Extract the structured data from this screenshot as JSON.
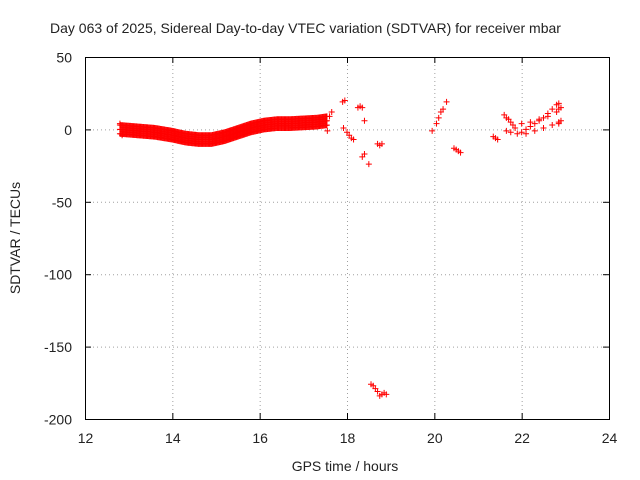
{
  "chart_data": {
    "type": "scatter",
    "title": "Day 063 of 2025, Sidereal Day-to-day VTEC variation (SDTVAR) for receiver mbar",
    "xlabel": "GPS time / hours",
    "ylabel": "SDTVAR / TECUs",
    "xlim": [
      12,
      24
    ],
    "ylim": [
      -200,
      50
    ],
    "xticks": [
      12,
      14,
      16,
      18,
      20,
      22,
      24
    ],
    "yticks": [
      -200,
      -150,
      -100,
      -50,
      0,
      50
    ],
    "grid": true,
    "marker": "+",
    "marker_color": "#ff0000",
    "series": [
      {
        "name": "SDTVAR",
        "bands": [
          {
            "x": [
              12.8,
              13.2,
              13.6,
              14.0,
              14.3,
              14.6,
              14.9,
              15.2,
              15.5,
              15.8,
              16.1,
              16.4,
              16.7,
              17.0,
              17.3,
              17.55
            ],
            "y": [
              0,
              -1,
              -2,
              -4,
              -6,
              -7,
              -7,
              -5,
              -2,
              1,
              3,
              4,
              4,
              4.5,
              5,
              6
            ],
            "spread": 3,
            "step": 0.02
          }
        ],
        "points": [
          {
            "x": 12.8,
            "y": 4
          },
          {
            "x": 12.85,
            "y": -4
          },
          {
            "x": 17.6,
            "y": 9
          },
          {
            "x": 17.65,
            "y": 12
          },
          {
            "x": 17.55,
            "y": -1
          },
          {
            "x": 17.9,
            "y": 19
          },
          {
            "x": 17.95,
            "y": 20
          },
          {
            "x": 17.92,
            "y": 1
          },
          {
            "x": 18.0,
            "y": -2
          },
          {
            "x": 18.05,
            "y": -4
          },
          {
            "x": 18.1,
            "y": -6
          },
          {
            "x": 18.15,
            "y": -7
          },
          {
            "x": 18.25,
            "y": 15
          },
          {
            "x": 18.3,
            "y": 16
          },
          {
            "x": 18.35,
            "y": 15
          },
          {
            "x": 18.4,
            "y": 6
          },
          {
            "x": 18.35,
            "y": -19
          },
          {
            "x": 18.4,
            "y": -17
          },
          {
            "x": 18.5,
            "y": -24
          },
          {
            "x": 18.7,
            "y": -10
          },
          {
            "x": 18.75,
            "y": -11
          },
          {
            "x": 18.8,
            "y": -10
          },
          {
            "x": 18.55,
            "y": -176
          },
          {
            "x": 18.6,
            "y": -177
          },
          {
            "x": 18.65,
            "y": -179
          },
          {
            "x": 18.7,
            "y": -181
          },
          {
            "x": 18.75,
            "y": -184
          },
          {
            "x": 18.8,
            "y": -183
          },
          {
            "x": 18.85,
            "y": -182
          },
          {
            "x": 18.9,
            "y": -183
          },
          {
            "x": 19.95,
            "y": -1
          },
          {
            "x": 20.05,
            "y": 4
          },
          {
            "x": 20.1,
            "y": 8
          },
          {
            "x": 20.15,
            "y": 12
          },
          {
            "x": 20.2,
            "y": 14
          },
          {
            "x": 20.28,
            "y": 19
          },
          {
            "x": 20.45,
            "y": -13
          },
          {
            "x": 20.5,
            "y": -14
          },
          {
            "x": 20.55,
            "y": -15
          },
          {
            "x": 20.6,
            "y": -16
          },
          {
            "x": 21.35,
            "y": -5
          },
          {
            "x": 21.4,
            "y": -6
          },
          {
            "x": 21.45,
            "y": -7
          },
          {
            "x": 21.6,
            "y": 10
          },
          {
            "x": 21.65,
            "y": 8
          },
          {
            "x": 21.7,
            "y": 7
          },
          {
            "x": 21.75,
            "y": 5
          },
          {
            "x": 21.8,
            "y": 3
          },
          {
            "x": 21.85,
            "y": 1
          },
          {
            "x": 21.65,
            "y": -1
          },
          {
            "x": 21.75,
            "y": -2
          },
          {
            "x": 21.9,
            "y": -3
          },
          {
            "x": 22.0,
            "y": -2
          },
          {
            "x": 22.1,
            "y": 0
          },
          {
            "x": 22.2,
            "y": 2
          },
          {
            "x": 22.3,
            "y": 4
          },
          {
            "x": 22.4,
            "y": 6
          },
          {
            "x": 22.5,
            "y": 8
          },
          {
            "x": 22.6,
            "y": 11
          },
          {
            "x": 22.7,
            "y": 14
          },
          {
            "x": 22.8,
            "y": 17
          },
          {
            "x": 22.85,
            "y": 18
          },
          {
            "x": 22.0,
            "y": 4
          },
          {
            "x": 22.2,
            "y": 5
          },
          {
            "x": 22.4,
            "y": 7
          },
          {
            "x": 22.6,
            "y": 9
          },
          {
            "x": 22.8,
            "y": 12
          },
          {
            "x": 22.85,
            "y": 14
          },
          {
            "x": 22.1,
            "y": -3
          },
          {
            "x": 22.3,
            "y": -1
          },
          {
            "x": 22.5,
            "y": 1
          },
          {
            "x": 22.7,
            "y": 3
          },
          {
            "x": 22.85,
            "y": 5
          },
          {
            "x": 22.85,
            "y": 4
          },
          {
            "x": 22.9,
            "y": 15
          },
          {
            "x": 22.9,
            "y": 6
          }
        ]
      }
    ]
  }
}
